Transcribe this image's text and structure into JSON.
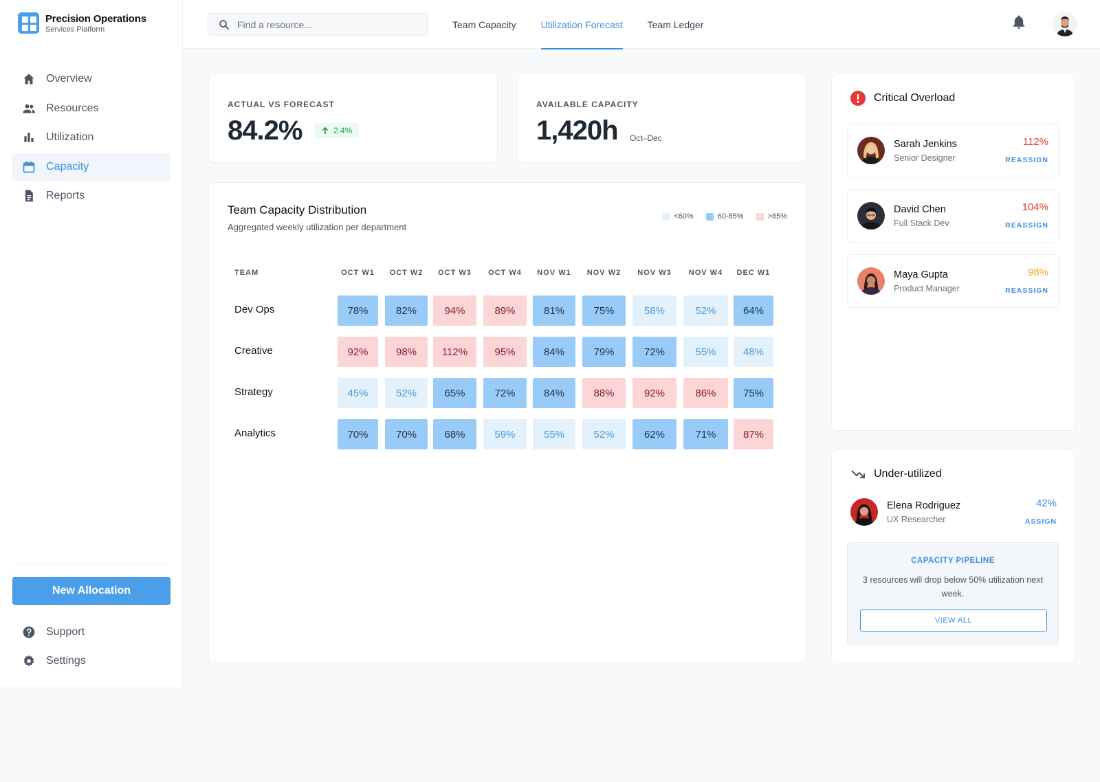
{
  "brand": {
    "title": "Precision Operations",
    "subtitle": "Services Platform"
  },
  "sidebar": {
    "items": [
      {
        "label": "Overview",
        "icon": "home-icon"
      },
      {
        "label": "Resources",
        "icon": "people-icon"
      },
      {
        "label": "Utilization",
        "icon": "bar-chart-icon"
      },
      {
        "label": "Capacity",
        "icon": "calendar-icon",
        "active": true
      },
      {
        "label": "Reports",
        "icon": "document-icon"
      }
    ],
    "new_button": "New Allocation",
    "footer": [
      {
        "label": "Support",
        "icon": "help-icon"
      },
      {
        "label": "Settings",
        "icon": "gear-icon"
      }
    ]
  },
  "topbar": {
    "search_placeholder": "Find a resource...",
    "tabs": [
      {
        "label": "Team Capacity"
      },
      {
        "label": "Utilization Forecast",
        "active": true
      },
      {
        "label": "Team Ledger"
      }
    ]
  },
  "stats": {
    "actual": {
      "label": "ACTUAL VS FORECAST",
      "value": "84.2%",
      "delta": "2.4%"
    },
    "available": {
      "label": "AVAILABLE CAPACITY",
      "value": "1,420h",
      "note": "Oct–Dec"
    }
  },
  "heatmap": {
    "title": "Team Capacity Distribution",
    "subtitle": "Aggregated weekly utilization per department",
    "legend": [
      "<60%",
      "60-85%",
      ">85%"
    ],
    "team_header": "TEAM",
    "columns": [
      "OCT W1",
      "OCT W2",
      "OCT W3",
      "OCT W4",
      "NOV W1",
      "NOV W2",
      "NOV W3",
      "NOV W4",
      "DEC W1"
    ],
    "rows": [
      {
        "team": "Dev Ops",
        "values": [
          "78%",
          "82%",
          "94%",
          "89%",
          "81%",
          "75%",
          "58%",
          "52%",
          "64%"
        ]
      },
      {
        "team": "Creative",
        "values": [
          "92%",
          "98%",
          "112%",
          "95%",
          "84%",
          "79%",
          "72%",
          "55%",
          "48%"
        ]
      },
      {
        "team": "Strategy",
        "values": [
          "45%",
          "52%",
          "65%",
          "72%",
          "84%",
          "88%",
          "92%",
          "86%",
          "75%"
        ]
      },
      {
        "team": "Analytics",
        "values": [
          "70%",
          "70%",
          "68%",
          "59%",
          "55%",
          "52%",
          "62%",
          "71%",
          "87%"
        ]
      }
    ],
    "colors": {
      "low_bg": "#e3f1fd",
      "low_fg": "#4a9ad8",
      "mid_bg": "#98cbf7",
      "mid_fg": "#1b3550",
      "high_bg": "#fcd5d7",
      "high_fg": "#8a1c22"
    }
  },
  "critical": {
    "title": "Critical Overload",
    "people": [
      {
        "name": "Sarah Jenkins",
        "role": "Senior Designer",
        "pct": "112%",
        "action": "REASSIGN",
        "color": "#e53935"
      },
      {
        "name": "David Chen",
        "role": "Full Stack Dev",
        "pct": "104%",
        "action": "REASSIGN",
        "color": "#e53935"
      },
      {
        "name": "Maya Gupta",
        "role": "Product Manager",
        "pct": "98%",
        "action": "REASSIGN",
        "color": "#f5a623"
      }
    ]
  },
  "under": {
    "title": "Under-utilized",
    "person": {
      "name": "Elena Rodriguez",
      "role": "UX Researcher",
      "pct": "42%",
      "action": "ASSIGN"
    },
    "pipeline": {
      "title": "CAPACITY PIPELINE",
      "text": "3 resources will drop below 50% utilization next week.",
      "button": "VIEW ALL"
    }
  }
}
